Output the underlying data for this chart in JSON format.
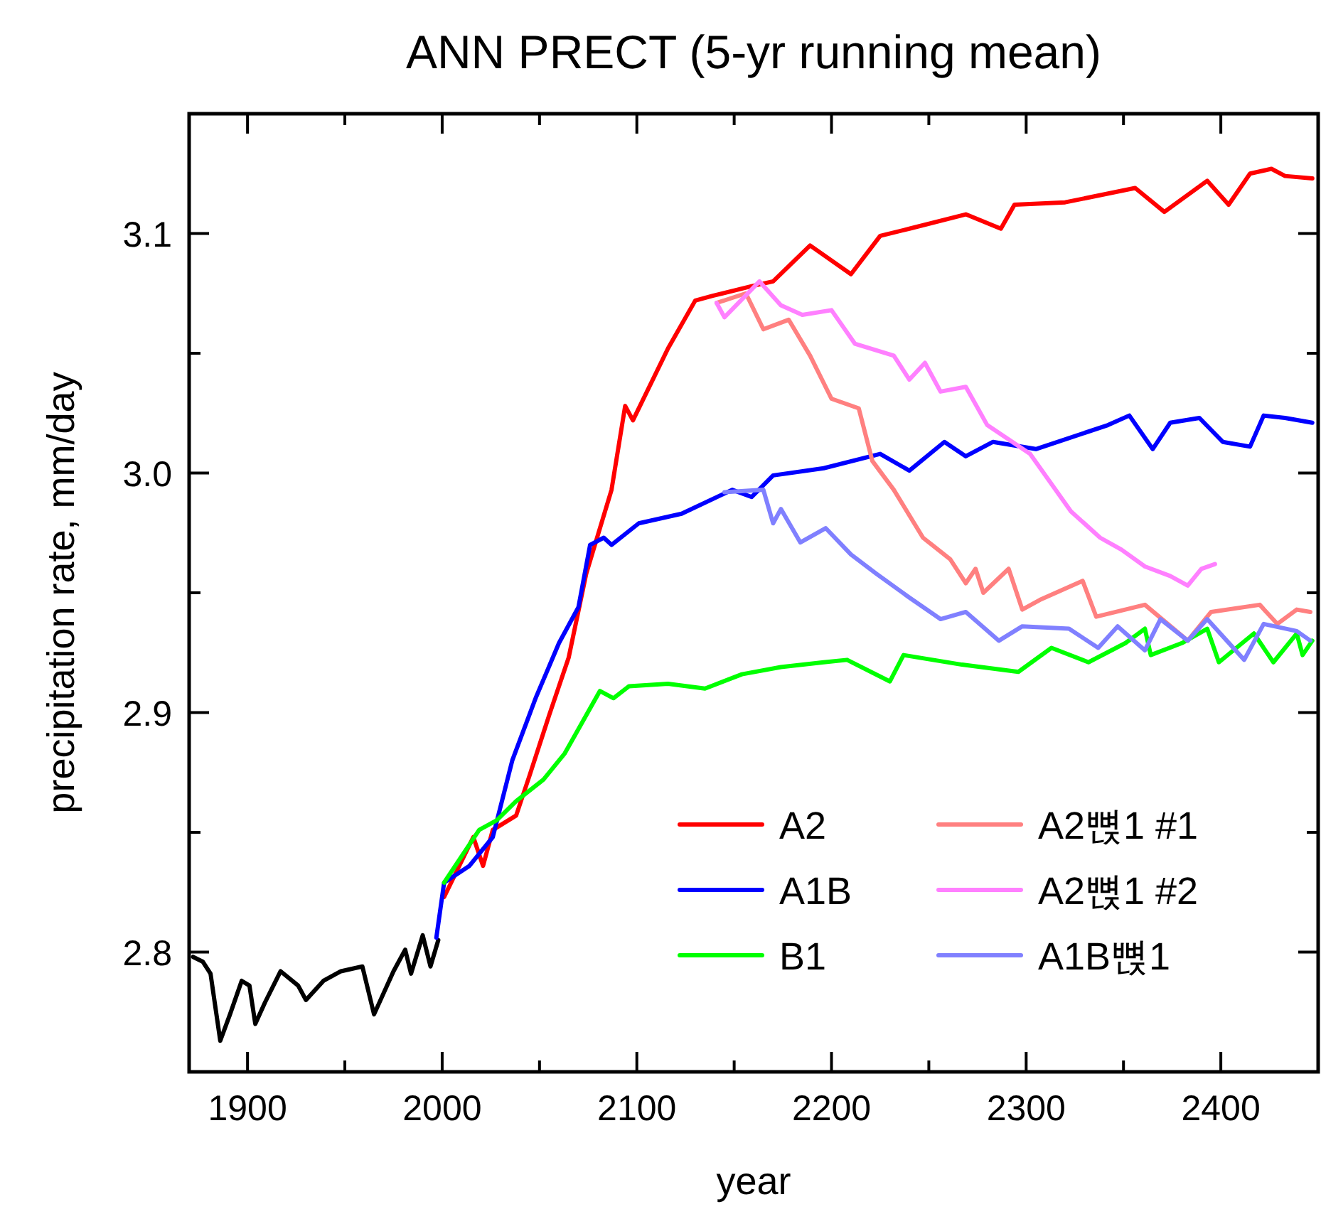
{
  "chart_data": {
    "type": "line",
    "title": "ANN PRECT (5-yr running mean)",
    "xlabel": "year",
    "ylabel": "precipitation rate, mm/day",
    "xlim": [
      1870,
      2450
    ],
    "ylim": [
      2.75,
      3.15
    ],
    "xticks": [
      1900,
      {
        "value": 1950,
        "label": null
      },
      2000,
      {
        "value": 2050,
        "label": null
      },
      2100,
      {
        "value": 2150,
        "label": null
      },
      2200,
      {
        "value": 2250,
        "label": null
      },
      2300,
      {
        "value": 2350,
        "label": null
      },
      2400
    ],
    "yticks": [
      2.8,
      {
        "value": 2.85,
        "label": null
      },
      2.9,
      {
        "value": 2.95,
        "label": null
      },
      {
        "value": 3.0,
        "label": "3.0"
      },
      {
        "value": 3.05,
        "label": null
      },
      3.1
    ],
    "grid": false,
    "legend": "bottom right",
    "line_style": "solid",
    "marker": "none",
    "series": [
      {
        "color": "#000000",
        "x": [
          1872,
          1877,
          1881,
          1886,
          1891,
          1897,
          1901,
          1904,
          1909,
          1917,
          1926,
          1930,
          1939,
          1948,
          1959,
          1965,
          1975,
          1981,
          1984,
          1990,
          1994,
          1998
        ],
        "values": [
          2.798,
          2.796,
          2.791,
          2.763,
          2.774,
          2.788,
          2.786,
          2.77,
          2.779,
          2.792,
          2.786,
          2.78,
          2.788,
          2.792,
          2.794,
          2.774,
          2.792,
          2.801,
          2.791,
          2.807,
          2.794,
          2.805
        ]
      },
      {
        "name": "A2",
        "color": "#ff0000",
        "x": [
          2001,
          2016,
          2021,
          2026,
          2038,
          2045,
          2055,
          2065,
          2074,
          2087,
          2094,
          2098,
          2116,
          2130,
          2139,
          2159,
          2170,
          2189,
          2210,
          2225,
          2240,
          2269,
          2287,
          2294,
          2320,
          2356,
          2371,
          2393,
          2404,
          2415,
          2426,
          2433,
          2447
        ],
        "values": [
          2.823,
          2.848,
          2.836,
          2.851,
          2.857,
          2.874,
          2.899,
          2.923,
          2.958,
          2.993,
          3.028,
          3.022,
          3.052,
          3.072,
          3.074,
          3.078,
          3.08,
          3.095,
          3.083,
          3.099,
          3.102,
          3.108,
          3.102,
          3.112,
          3.113,
          3.119,
          3.109,
          3.122,
          3.112,
          3.125,
          3.127,
          3.124,
          3.123
        ]
      },
      {
        "name": "A1B",
        "color": "#0000ff",
        "x": [
          1997,
          2001,
          2014,
          2026,
          2036,
          2048,
          2060,
          2070,
          2076,
          2083,
          2087,
          2101,
          2123,
          2149,
          2159,
          2170,
          2196,
          2225,
          2240,
          2258,
          2269,
          2283,
          2305,
          2342,
          2353,
          2365,
          2374,
          2389,
          2401,
          2415,
          2422,
          2433,
          2447
        ],
        "values": [
          2.806,
          2.829,
          2.836,
          2.848,
          2.88,
          2.906,
          2.929,
          2.944,
          2.97,
          2.973,
          2.97,
          2.979,
          2.983,
          2.993,
          2.99,
          2.999,
          3.002,
          3.008,
          3.001,
          3.013,
          3.007,
          3.013,
          3.01,
          3.02,
          3.024,
          3.01,
          3.021,
          3.023,
          3.013,
          3.011,
          3.024,
          3.023,
          3.021
        ]
      },
      {
        "name": "B1",
        "color": "#00ff00",
        "x": [
          2001,
          2019,
          2028,
          2038,
          2052,
          2063,
          2072,
          2081,
          2088,
          2096,
          2116,
          2135,
          2154,
          2174,
          2196,
          2208,
          2230,
          2237,
          2267,
          2296,
          2313,
          2332,
          2351,
          2361,
          2364,
          2380,
          2393,
          2399,
          2417,
          2427,
          2439,
          2442,
          2447
        ],
        "values": [
          2.829,
          2.851,
          2.855,
          2.863,
          2.872,
          2.883,
          2.896,
          2.909,
          2.906,
          2.911,
          2.912,
          2.91,
          2.916,
          2.919,
          2.921,
          2.922,
          2.913,
          2.924,
          2.92,
          2.917,
          2.927,
          2.921,
          2.929,
          2.935,
          2.924,
          2.929,
          2.935,
          2.921,
          2.933,
          2.921,
          2.933,
          2.924,
          2.93
        ]
      },
      {
        "name": "A2뼍1 #1",
        "color": "#ff8080",
        "x": [
          2141,
          2156,
          2165,
          2178,
          2189,
          2200,
          2214,
          2221,
          2232,
          2247,
          2261,
          2269,
          2274,
          2278,
          2291,
          2298,
          2307,
          2329,
          2336,
          2361,
          2383,
          2395,
          2420,
          2429,
          2439,
          2446
        ],
        "values": [
          3.071,
          3.075,
          3.06,
          3.064,
          3.049,
          3.031,
          3.027,
          3.005,
          2.993,
          2.973,
          2.964,
          2.954,
          2.96,
          2.95,
          2.96,
          2.943,
          2.947,
          2.955,
          2.94,
          2.945,
          2.93,
          2.942,
          2.945,
          2.937,
          2.943,
          2.942
        ]
      },
      {
        "name": "A2뼍1 #2",
        "color": "#ff80ff",
        "x": [
          2141,
          2145,
          2163,
          2174,
          2185,
          2200,
          2212,
          2232,
          2240,
          2248,
          2256,
          2269,
          2280,
          2302,
          2323,
          2338,
          2349,
          2361,
          2374,
          2383,
          2390,
          2397
        ],
        "values": [
          3.071,
          3.065,
          3.08,
          3.07,
          3.066,
          3.068,
          3.054,
          3.049,
          3.039,
          3.046,
          3.034,
          3.036,
          3.02,
          3.008,
          2.984,
          2.973,
          2.968,
          2.961,
          2.957,
          2.953,
          2.96,
          2.962
        ]
      },
      {
        "name": "A1B뼍1",
        "color": "#8080ff",
        "x": [
          2145,
          2165,
          2170,
          2174,
          2184,
          2197,
          2210,
          2223,
          2240,
          2256,
          2269,
          2286,
          2298,
          2322,
          2337,
          2347,
          2361,
          2369,
          2383,
          2393,
          2412,
          2422,
          2439,
          2446
        ],
        "values": [
          2.992,
          2.993,
          2.979,
          2.985,
          2.971,
          2.977,
          2.966,
          2.958,
          2.948,
          2.939,
          2.942,
          2.93,
          2.936,
          2.935,
          2.927,
          2.936,
          2.926,
          2.939,
          2.93,
          2.939,
          2.922,
          2.937,
          2.934,
          2.93
        ]
      }
    ]
  }
}
